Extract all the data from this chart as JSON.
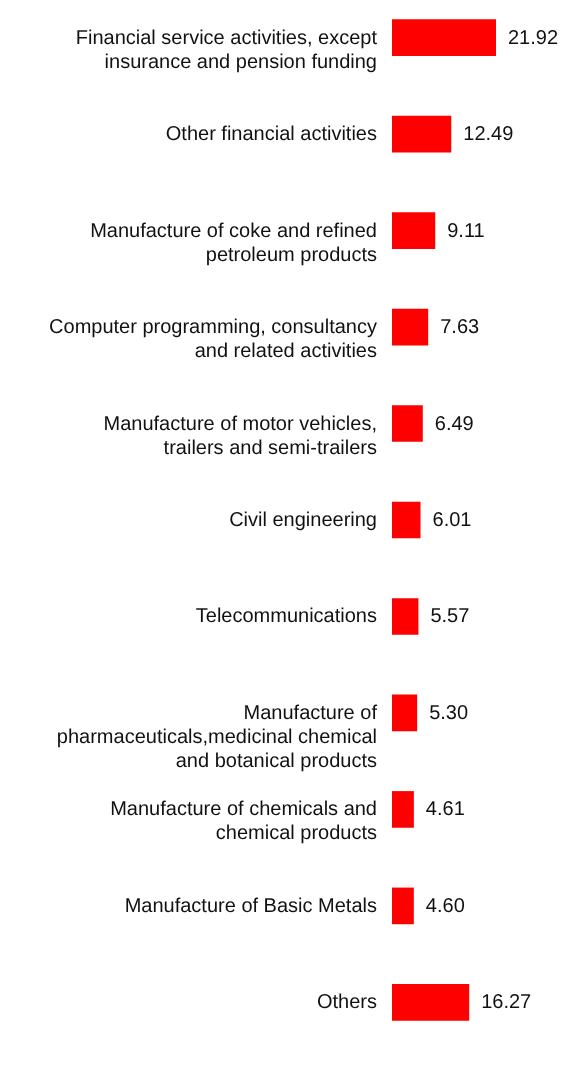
{
  "chart_data": {
    "type": "bar",
    "orientation": "horizontal",
    "categories": [
      "Financial service activities, except insurance and pension funding",
      "Other financial activities",
      "Manufacture of coke and refined petroleum products",
      "Computer programming, consultancy and related activities",
      "Manufacture of motor vehicles, trailers and semi-trailers",
      "Civil engineering",
      "Telecommunications",
      "Manufacture of pharmaceuticals,medicinal chemical and botanical products",
      "Manufacture of chemicals and chemical products",
      "Manufacture of Basic Metals",
      "Others"
    ],
    "values": [
      21.92,
      12.49,
      9.11,
      7.63,
      6.49,
      6.01,
      5.57,
      5.3,
      4.61,
      4.6,
      16.27
    ],
    "value_labels": [
      "21.92",
      "12.49",
      "9.11",
      "7.63",
      "6.49",
      "6.01",
      "5.57",
      "5.30",
      "4.61",
      "4.60",
      "16.27"
    ],
    "color": "#ff0000"
  }
}
